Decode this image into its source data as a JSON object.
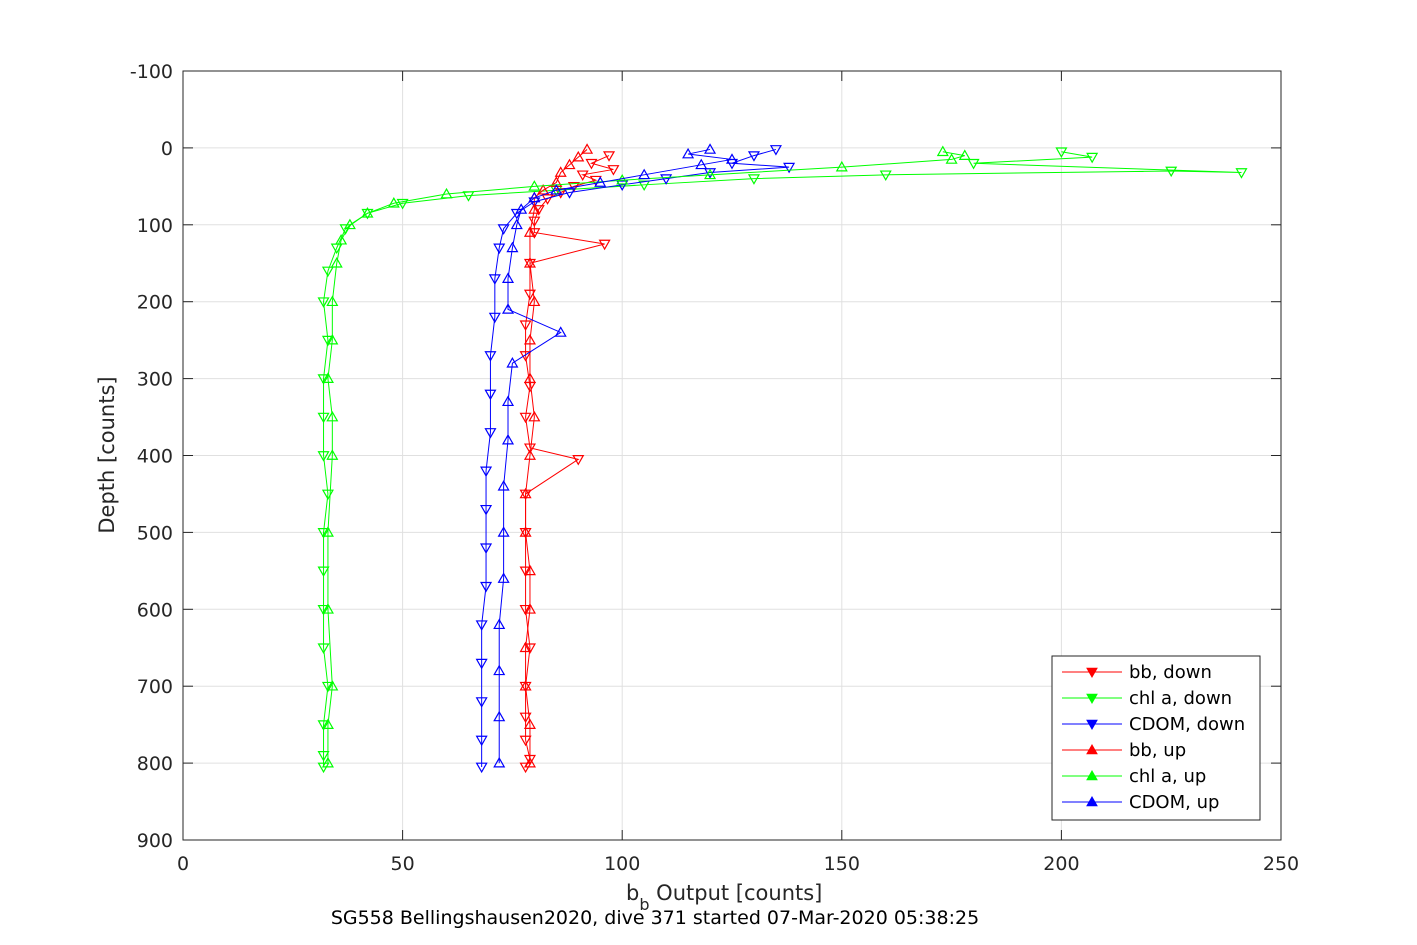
{
  "chart_data": {
    "type": "scatter",
    "title": "",
    "caption": "SG558 Bellingshausen2020, dive 371 started 07-Mar-2020 05:38:25",
    "xlabel_base": "b",
    "xlabel_sub": "b",
    "xlabel_rest": " Output [counts]",
    "ylabel": "Depth [counts]",
    "xlim": [
      0,
      250
    ],
    "ylim": [
      -100,
      900
    ],
    "y_reversed": true,
    "grid": true,
    "legend_position": "bottom-right",
    "x_ticks": [
      "0",
      "50",
      "100",
      "150",
      "200",
      "250"
    ],
    "y_ticks": [
      "-100",
      "0",
      "100",
      "200",
      "300",
      "400",
      "500",
      "600",
      "700",
      "800",
      "900"
    ],
    "series": [
      {
        "name": "bb, down",
        "color": "#ff0000",
        "marker": "triangle-down",
        "x": [
          97,
          93,
          98,
          91,
          94,
          89,
          86,
          83,
          81,
          80,
          80,
          96,
          79,
          79,
          78,
          78,
          79,
          78,
          79,
          90,
          78,
          78,
          78,
          78,
          79,
          78,
          78,
          78,
          79,
          78
        ],
        "y": [
          10,
          20,
          28,
          35,
          42,
          50,
          58,
          66,
          80,
          95,
          110,
          125,
          150,
          190,
          230,
          270,
          310,
          350,
          390,
          405,
          450,
          500,
          550,
          600,
          650,
          700,
          740,
          770,
          795,
          805
        ]
      },
      {
        "name": "chl a, down",
        "color": "#00ff00",
        "marker": "triangle-down",
        "x": [
          200,
          207,
          180,
          241,
          225,
          160,
          130,
          105,
          85,
          65,
          50,
          42,
          37,
          35,
          33,
          32,
          33,
          32,
          32,
          32,
          33,
          32,
          32,
          32,
          32,
          33,
          32,
          32,
          32
        ],
        "y": [
          5,
          12,
          20,
          32,
          30,
          35,
          40,
          48,
          55,
          62,
          72,
          85,
          105,
          130,
          160,
          200,
          250,
          300,
          350,
          400,
          450,
          500,
          550,
          600,
          650,
          700,
          750,
          790,
          805
        ]
      },
      {
        "name": "CDOM, down",
        "color": "#0000ff",
        "marker": "triangle-down",
        "x": [
          135,
          130,
          125,
          138,
          120,
          110,
          100,
          88,
          80,
          76,
          73,
          72,
          71,
          71,
          70,
          70,
          70,
          69,
          69,
          69,
          69,
          68,
          68,
          68,
          68,
          68
        ],
        "y": [
          2,
          10,
          20,
          25,
          32,
          40,
          48,
          58,
          70,
          85,
          105,
          130,
          170,
          220,
          270,
          320,
          370,
          420,
          470,
          520,
          570,
          620,
          670,
          720,
          770,
          805
        ]
      },
      {
        "name": "bb, up",
        "color": "#ff0000",
        "marker": "triangle-up",
        "x": [
          92,
          90,
          88,
          86,
          85,
          82,
          80,
          80,
          79,
          79,
          80,
          79,
          79,
          80,
          79,
          78,
          78,
          79,
          79,
          78,
          78,
          79,
          79
        ],
        "y": [
          2,
          12,
          22,
          32,
          45,
          55,
          65,
          80,
          110,
          150,
          200,
          250,
          300,
          350,
          400,
          450,
          500,
          550,
          600,
          650,
          700,
          750,
          800
        ]
      },
      {
        "name": "chl a, up",
        "color": "#00ff00",
        "marker": "triangle-up",
        "x": [
          173,
          178,
          175,
          150,
          120,
          100,
          80,
          60,
          48,
          42,
          38,
          36,
          35,
          34,
          34,
          33,
          34,
          34,
          33,
          33,
          34,
          33,
          33
        ],
        "y": [
          5,
          10,
          15,
          25,
          35,
          42,
          50,
          60,
          72,
          85,
          100,
          120,
          150,
          200,
          250,
          300,
          350,
          400,
          500,
          600,
          700,
          750,
          800
        ]
      },
      {
        "name": "CDOM, up",
        "color": "#0000ff",
        "marker": "triangle-up",
        "x": [
          120,
          115,
          125,
          118,
          105,
          95,
          85,
          80,
          77,
          76,
          75,
          74,
          74,
          86,
          75,
          74,
          74,
          73,
          73,
          73,
          72,
          72,
          72,
          72
        ],
        "y": [
          2,
          8,
          15,
          22,
          35,
          45,
          55,
          65,
          80,
          100,
          130,
          170,
          210,
          240,
          280,
          330,
          380,
          440,
          500,
          560,
          620,
          680,
          740,
          800
        ]
      }
    ]
  }
}
